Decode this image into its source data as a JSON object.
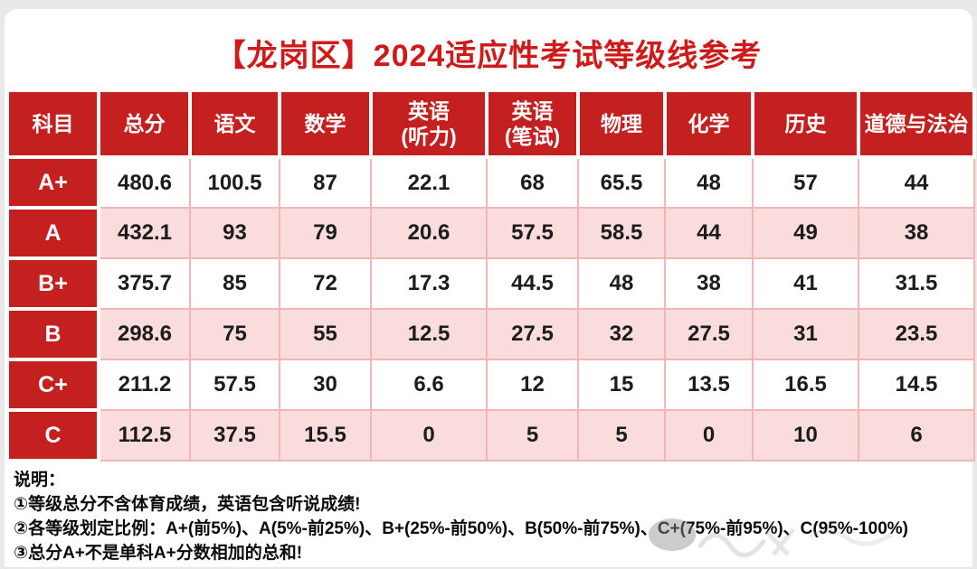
{
  "title": "【龙岗区】2024适应性考试等级线参考",
  "colors": {
    "accent_red": "#c42020",
    "title_red": "#cf1a1a",
    "row_pink": "#fadcdc",
    "border_pink": "#f2b6b6"
  },
  "table": {
    "headers": [
      {
        "lines": [
          "科目"
        ]
      },
      {
        "lines": [
          "总分"
        ]
      },
      {
        "lines": [
          "语文"
        ]
      },
      {
        "lines": [
          "数学"
        ]
      },
      {
        "lines": [
          "英语",
          "(听力)"
        ]
      },
      {
        "lines": [
          "英语",
          "(笔试)"
        ]
      },
      {
        "lines": [
          "物理"
        ]
      },
      {
        "lines": [
          "化学"
        ]
      },
      {
        "lines": [
          "历史"
        ]
      },
      {
        "lines": [
          "道德与法治"
        ]
      }
    ],
    "rows": [
      {
        "grade": "A+",
        "values": [
          "480.6",
          "100.5",
          "87",
          "22.1",
          "68",
          "65.5",
          "48",
          "57",
          "44"
        ]
      },
      {
        "grade": "A",
        "values": [
          "432.1",
          "93",
          "79",
          "20.6",
          "57.5",
          "58.5",
          "44",
          "49",
          "38"
        ]
      },
      {
        "grade": "B+",
        "values": [
          "375.7",
          "85",
          "72",
          "17.3",
          "44.5",
          "48",
          "38",
          "41",
          "31.5"
        ]
      },
      {
        "grade": "B",
        "values": [
          "298.6",
          "75",
          "55",
          "12.5",
          "27.5",
          "32",
          "27.5",
          "31",
          "23.5"
        ]
      },
      {
        "grade": "C+",
        "values": [
          "211.2",
          "57.5",
          "30",
          "6.6",
          "12",
          "15",
          "13.5",
          "16.5",
          "14.5"
        ]
      },
      {
        "grade": "C",
        "values": [
          "112.5",
          "37.5",
          "15.5",
          "0",
          "5",
          "5",
          "0",
          "10",
          "6"
        ]
      }
    ]
  },
  "notes": {
    "heading": "说明：",
    "items": [
      "①等级总分不含体育成绩，英语包含听说成绩!",
      "②各等级划定比例：A+(前5%)、A(5%-前25%)、B+(25%-前50%)、B(50%-前75%)、C+(75%-前95%)、C(95%-100%)",
      "③总分A+不是单科A+分数相加的总和!"
    ]
  },
  "chart_data": {
    "type": "table",
    "title": "【龙岗区】2024适应性考试等级线参考",
    "columns": [
      "科目",
      "总分",
      "语文",
      "数学",
      "英语(听力)",
      "英语(笔试)",
      "物理",
      "化学",
      "历史",
      "道德与法治"
    ],
    "rows": [
      [
        "A+",
        480.6,
        100.5,
        87,
        22.1,
        68,
        65.5,
        48,
        57,
        44
      ],
      [
        "A",
        432.1,
        93,
        79,
        20.6,
        57.5,
        58.5,
        44,
        49,
        38
      ],
      [
        "B+",
        375.7,
        85,
        72,
        17.3,
        44.5,
        48,
        38,
        41,
        31.5
      ],
      [
        "B",
        298.6,
        75,
        55,
        12.5,
        27.5,
        32,
        27.5,
        31,
        23.5
      ],
      [
        "C+",
        211.2,
        57.5,
        30,
        6.6,
        12,
        15,
        13.5,
        16.5,
        14.5
      ],
      [
        "C",
        112.5,
        37.5,
        15.5,
        0,
        5,
        5,
        0,
        10,
        6
      ]
    ]
  }
}
